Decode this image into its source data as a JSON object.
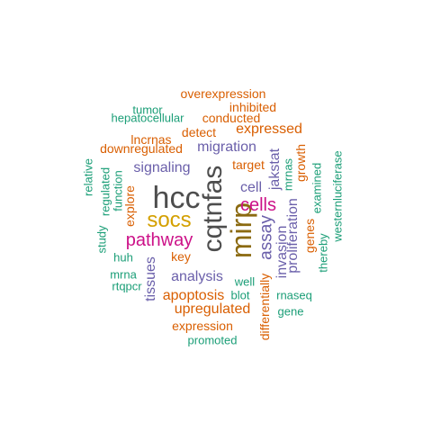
{
  "palette": {
    "dark_gray": "#4d4d4d",
    "magenta": "#cc1188",
    "gold": "#d4a000",
    "purple": "#6a5faa",
    "orange": "#d95f02",
    "green": "#1b9e77",
    "olive": "#8b6a10"
  },
  "words": [
    {
      "text": "hcc",
      "weight": 1.0,
      "color_key": "dark_gray",
      "orientation": "horizontal"
    },
    {
      "text": "cqtnfas",
      "weight": 0.98,
      "color_key": "dark_gray",
      "orientation": "vertical"
    },
    {
      "text": "mirp",
      "weight": 0.92,
      "color_key": "olive",
      "orientation": "vertical"
    },
    {
      "text": "socs",
      "weight": 0.82,
      "color_key": "gold",
      "orientation": "horizontal"
    },
    {
      "text": "cells",
      "weight": 0.7,
      "color_key": "magenta",
      "orientation": "horizontal"
    },
    {
      "text": "pathway",
      "weight": 0.68,
      "color_key": "magenta",
      "orientation": "horizontal"
    },
    {
      "text": "assay",
      "weight": 0.62,
      "color_key": "purple",
      "orientation": "vertical"
    },
    {
      "text": "migration",
      "weight": 0.55,
      "color_key": "purple",
      "orientation": "horizontal"
    },
    {
      "text": "signaling",
      "weight": 0.55,
      "color_key": "purple",
      "orientation": "horizontal"
    },
    {
      "text": "jakstat",
      "weight": 0.55,
      "color_key": "purple",
      "orientation": "vertical"
    },
    {
      "text": "analysis",
      "weight": 0.55,
      "color_key": "purple",
      "orientation": "horizontal"
    },
    {
      "text": "invasion",
      "weight": 0.55,
      "color_key": "purple",
      "orientation": "vertical"
    },
    {
      "text": "proliferation",
      "weight": 0.55,
      "color_key": "purple",
      "orientation": "vertical"
    },
    {
      "text": "tissues",
      "weight": 0.5,
      "color_key": "purple",
      "orientation": "vertical"
    },
    {
      "text": "cell",
      "weight": 0.5,
      "color_key": "purple",
      "orientation": "horizontal"
    },
    {
      "text": "expressed",
      "weight": 0.5,
      "color_key": "orange",
      "orientation": "horizontal"
    },
    {
      "text": "apoptosis",
      "weight": 0.5,
      "color_key": "orange",
      "orientation": "horizontal"
    },
    {
      "text": "upregulated",
      "weight": 0.5,
      "color_key": "orange",
      "orientation": "horizontal"
    },
    {
      "text": "overexpression",
      "weight": 0.42,
      "color_key": "orange",
      "orientation": "horizontal"
    },
    {
      "text": "inhibited",
      "weight": 0.42,
      "color_key": "orange",
      "orientation": "horizontal"
    },
    {
      "text": "conducted",
      "weight": 0.42,
      "color_key": "orange",
      "orientation": "horizontal"
    },
    {
      "text": "detect",
      "weight": 0.42,
      "color_key": "orange",
      "orientation": "horizontal"
    },
    {
      "text": "lncrnas",
      "weight": 0.42,
      "color_key": "orange",
      "orientation": "horizontal"
    },
    {
      "text": "downregulated",
      "weight": 0.42,
      "color_key": "orange",
      "orientation": "horizontal"
    },
    {
      "text": "target",
      "weight": 0.42,
      "color_key": "orange",
      "orientation": "horizontal"
    },
    {
      "text": "key",
      "weight": 0.42,
      "color_key": "orange",
      "orientation": "horizontal"
    },
    {
      "text": "expression",
      "weight": 0.42,
      "color_key": "orange",
      "orientation": "horizontal"
    },
    {
      "text": "explore",
      "weight": 0.42,
      "color_key": "orange",
      "orientation": "vertical"
    },
    {
      "text": "growth",
      "weight": 0.42,
      "color_key": "orange",
      "orientation": "vertical"
    },
    {
      "text": "genes",
      "weight": 0.42,
      "color_key": "orange",
      "orientation": "vertical"
    },
    {
      "text": "differentially",
      "weight": 0.42,
      "color_key": "orange",
      "orientation": "vertical"
    },
    {
      "text": "tumor",
      "weight": 0.36,
      "color_key": "green",
      "orientation": "horizontal"
    },
    {
      "text": "hepatocellular",
      "weight": 0.36,
      "color_key": "green",
      "orientation": "horizontal"
    },
    {
      "text": "relative",
      "weight": 0.36,
      "color_key": "green",
      "orientation": "vertical"
    },
    {
      "text": "regulated",
      "weight": 0.36,
      "color_key": "green",
      "orientation": "vertical"
    },
    {
      "text": "function",
      "weight": 0.36,
      "color_key": "green",
      "orientation": "vertical"
    },
    {
      "text": "study",
      "weight": 0.36,
      "color_key": "green",
      "orientation": "vertical"
    },
    {
      "text": "huh",
      "weight": 0.36,
      "color_key": "green",
      "orientation": "horizontal"
    },
    {
      "text": "mrna",
      "weight": 0.36,
      "color_key": "green",
      "orientation": "horizontal"
    },
    {
      "text": "rtqpcr",
      "weight": 0.36,
      "color_key": "green",
      "orientation": "horizontal"
    },
    {
      "text": "mrnas",
      "weight": 0.36,
      "color_key": "green",
      "orientation": "vertical"
    },
    {
      "text": "examined",
      "weight": 0.36,
      "color_key": "green",
      "orientation": "vertical"
    },
    {
      "text": "westernluciferase",
      "weight": 0.36,
      "color_key": "green",
      "orientation": "vertical"
    },
    {
      "text": "thereby",
      "weight": 0.36,
      "color_key": "green",
      "orientation": "vertical"
    },
    {
      "text": "well",
      "weight": 0.36,
      "color_key": "green",
      "orientation": "horizontal"
    },
    {
      "text": "blot",
      "weight": 0.36,
      "color_key": "green",
      "orientation": "horizontal"
    },
    {
      "text": "rnaseq",
      "weight": 0.36,
      "color_key": "green",
      "orientation": "horizontal"
    },
    {
      "text": "gene",
      "weight": 0.36,
      "color_key": "green",
      "orientation": "horizontal"
    },
    {
      "text": "promoted",
      "weight": 0.36,
      "color_key": "green",
      "orientation": "horizontal"
    }
  ]
}
